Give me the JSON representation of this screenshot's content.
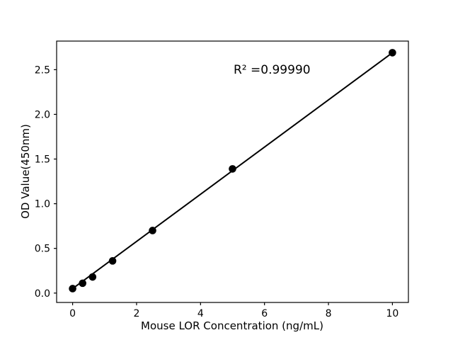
{
  "figure": {
    "background": "#ffffff"
  },
  "chart_data": {
    "type": "scatter",
    "title": "",
    "xlabel": "Mouse LOR Concentration (ng/mL)",
    "ylabel": "OD Value(450nm)",
    "annotation": "R² =0.99990",
    "x": [
      0,
      0.3125,
      0.625,
      1.25,
      2.5,
      5,
      10
    ],
    "y": [
      0.05,
      0.11,
      0.18,
      0.36,
      0.7,
      1.39,
      2.69
    ],
    "fit_line": {
      "x_start": 0,
      "y_start": 0.05,
      "x_end": 10,
      "y_end": 2.69
    },
    "xticks": {
      "values": [
        0,
        2,
        4,
        6,
        8,
        10
      ],
      "labels": [
        "0",
        "2",
        "4",
        "6",
        "8",
        "10"
      ]
    },
    "yticks": {
      "values": [
        0.0,
        0.5,
        1.0,
        1.5,
        2.0,
        2.5
      ],
      "labels": [
        "0.0",
        "0.5",
        "1.0",
        "1.5",
        "2.0",
        "2.5"
      ]
    },
    "xlim": [
      -0.5,
      10.5
    ],
    "ylim": [
      -0.105,
      2.82
    ],
    "grid": false,
    "legend": null,
    "marker_color": "#000000",
    "line_color": "#000000",
    "axis_color": "#000000"
  }
}
